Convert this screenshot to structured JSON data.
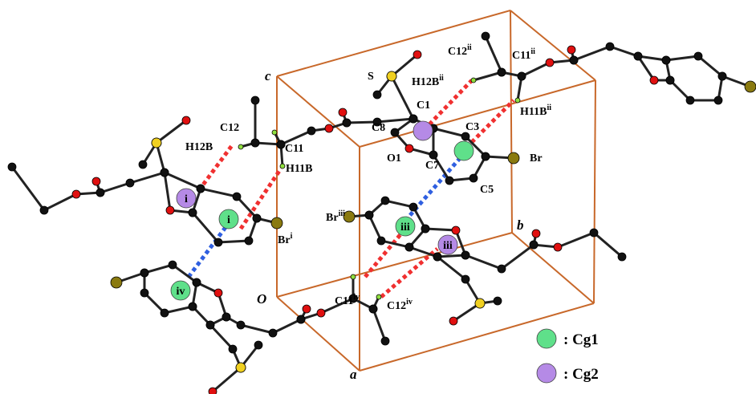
{
  "axes": [
    {
      "label": "c"
    },
    {
      "label": "O"
    },
    {
      "label": "a"
    },
    {
      "label": "b"
    }
  ],
  "atom_labels": [
    {
      "text": "S"
    },
    {
      "text": "C12",
      "sup": "ii"
    },
    {
      "text": "H12B",
      "sup": "ii"
    },
    {
      "text": "C11",
      "sup": "ii"
    },
    {
      "text": "H11B",
      "sup": "ii"
    },
    {
      "text": "C1"
    },
    {
      "text": "C3"
    },
    {
      "text": "C8"
    },
    {
      "text": "O1"
    },
    {
      "text": "C7"
    },
    {
      "text": "Br"
    },
    {
      "text": "C5"
    },
    {
      "text": "C12"
    },
    {
      "text": "H12B"
    },
    {
      "text": "C11"
    },
    {
      "text": "H11B"
    },
    {
      "text": "Br",
      "sup": "i"
    },
    {
      "text": "Br",
      "sup": "iii"
    },
    {
      "text": "C11",
      "sup": "iv"
    },
    {
      "text": "C12",
      "sup": "iv"
    }
  ],
  "cg_labels": [
    {
      "label": "i"
    },
    {
      "label": "i"
    },
    {
      "label": "iii"
    },
    {
      "label": "iii"
    },
    {
      "label": "iv"
    }
  ],
  "legend": [
    {
      "label": ": Cg1"
    },
    {
      "label": ": Cg2"
    }
  ]
}
